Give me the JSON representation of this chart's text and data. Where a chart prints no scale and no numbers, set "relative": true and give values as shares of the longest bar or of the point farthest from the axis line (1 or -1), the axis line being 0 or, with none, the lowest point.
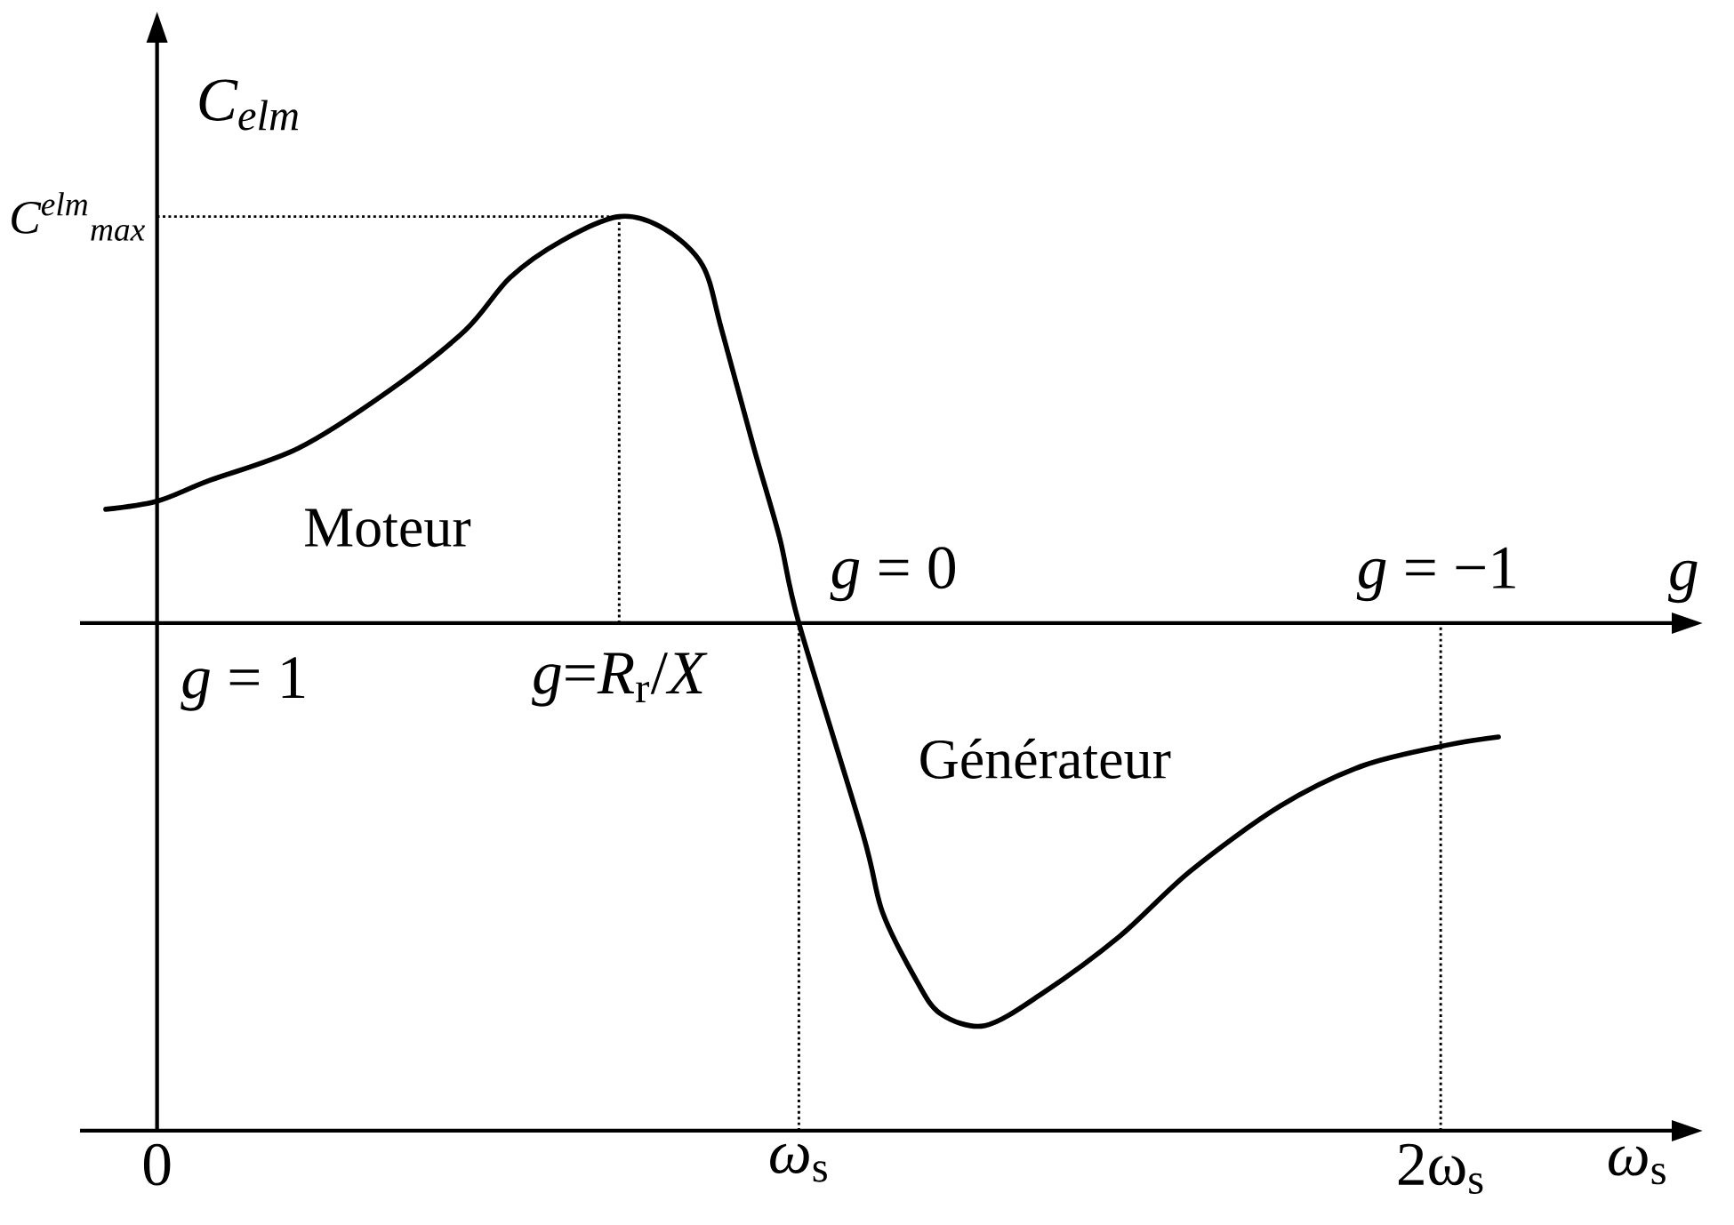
{
  "chart_data": {
    "type": "line",
    "relative": true,
    "ylabel": "C$_{elm}$",
    "xlabel": "*ω*$_{s}$",
    "x2label": "g",
    "xlim": [
      -0.12,
      2.36
    ],
    "xticks": [
      0,
      {
        "value": 1,
        "label": "*ω*$_{s}$"
      },
      {
        "value": 2,
        "label": "2ω$_{s}$"
      }
    ],
    "x": [
      -0.08,
      0.0,
      0.08,
      0.22,
      0.36,
      0.48,
      0.55,
      0.63,
      0.72,
      0.79,
      0.85,
      0.88,
      0.93,
      0.97,
      1.0,
      1.1,
      1.13,
      1.18,
      1.22,
      1.29,
      1.38,
      1.5,
      1.61,
      1.75,
      1.88,
      2.01,
      2.09
    ],
    "values": [
      0.28,
      0.3,
      0.35,
      0.43,
      0.57,
      0.72,
      0.85,
      0.94,
      1.0,
      0.97,
      0.88,
      0.72,
      0.43,
      0.21,
      0.0,
      -0.52,
      -0.71,
      -0.87,
      -0.96,
      -0.99,
      -0.91,
      -0.77,
      -0.61,
      -0.45,
      -0.35,
      -0.3,
      -0.28
    ],
    "color": "#000000",
    "marker": "none",
    "line_style": "solid",
    "ref_lines": [
      {
        "axis": "y",
        "value": 1,
        "label": "C$^{elm}$$_{max}$",
        "line_style": "dotted",
        "color": "#000000"
      },
      {
        "axis": "x",
        "value": 0.72,
        "line_style": "dotted",
        "color": "#000000"
      },
      {
        "axis": "x",
        "value": 1,
        "line_style": "dotted",
        "color": "#000000"
      },
      {
        "axis": "x",
        "value": 2,
        "line_style": "dotted",
        "color": "#000000"
      }
    ],
    "annotations": [
      "Moteur",
      "Générateur",
      "*g* = 1",
      "*g*=*R*$_{r}$/*X*",
      "*g* = 0",
      "*g* = −1"
    ]
  }
}
